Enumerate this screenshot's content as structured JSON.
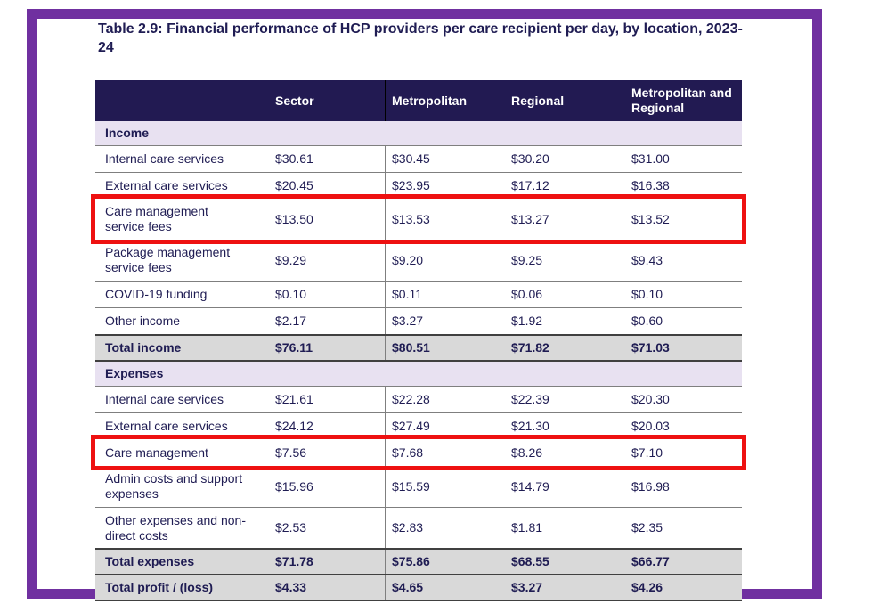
{
  "title": "Table 2.9: Financial performance of HCP providers per care recipient per day, by location, 2023-24",
  "colors": {
    "frame": "#7030a0",
    "header_bg": "#221a52",
    "section_bg": "#e8e1f1",
    "total_bg": "#d9d9d9",
    "text": "#1f1c53",
    "highlight_box": "#ee1111",
    "grid_line": "#7f7f7f"
  },
  "table": {
    "columns": [
      "",
      "Sector",
      "Metropolitan",
      "Regional",
      "Metropolitan and Regional"
    ],
    "sections": [
      {
        "label": "Income",
        "rows": [
          {
            "label": "Internal care services",
            "values": [
              "$30.61",
              "$30.45",
              "$30.20",
              "$31.00"
            ]
          },
          {
            "label": "External care services",
            "values": [
              "$20.45",
              "$23.95",
              "$17.12",
              "$16.38"
            ]
          },
          {
            "label": "Care management service fees",
            "values": [
              "$13.50",
              "$13.53",
              "$13.27",
              "$13.52"
            ],
            "highlighted": true
          },
          {
            "label": "Package management service fees",
            "values": [
              "$9.29",
              "$9.20",
              "$9.25",
              "$9.43"
            ]
          },
          {
            "label": "COVID-19 funding",
            "values": [
              "$0.10",
              "$0.11",
              "$0.06",
              "$0.10"
            ]
          },
          {
            "label": "Other income",
            "values": [
              "$2.17",
              "$3.27",
              "$1.92",
              "$0.60"
            ]
          }
        ],
        "total": {
          "label": "Total income",
          "values": [
            "$76.11",
            "$80.51",
            "$71.82",
            "$71.03"
          ]
        }
      },
      {
        "label": "Expenses",
        "rows": [
          {
            "label": "Internal care services",
            "values": [
              "$21.61",
              "$22.28",
              "$22.39",
              "$20.30"
            ]
          },
          {
            "label": "External care services",
            "values": [
              "$24.12",
              "$27.49",
              "$21.30",
              "$20.03"
            ]
          },
          {
            "label": "Care management",
            "values": [
              "$7.56",
              "$7.68",
              "$8.26",
              "$7.10"
            ],
            "highlighted": true
          },
          {
            "label": "Admin costs and support expenses",
            "values": [
              "$15.96",
              "$15.59",
              "$14.79",
              "$16.98"
            ]
          },
          {
            "label": "Other expenses and non-direct costs",
            "values": [
              "$2.53",
              "$2.83",
              "$1.81",
              "$2.35"
            ]
          }
        ],
        "total": {
          "label": "Total expenses",
          "values": [
            "$71.78",
            "$75.86",
            "$68.55",
            "$66.77"
          ]
        }
      }
    ],
    "grand_total": {
      "label": "Total profit / (loss)",
      "values": [
        "$4.33",
        "$4.65",
        "$3.27",
        "$4.26"
      ]
    }
  }
}
